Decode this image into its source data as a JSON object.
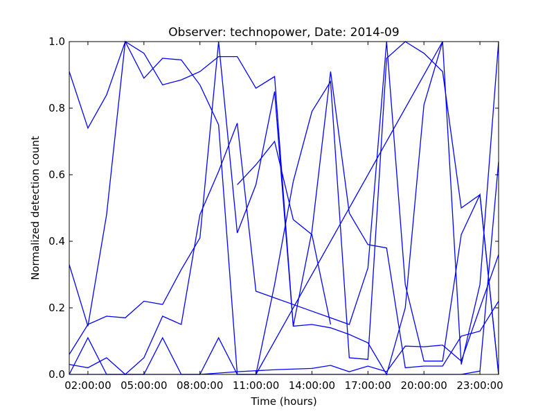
{
  "chart_data": {
    "type": "line",
    "title": "Observer: technopower, Date: 2014-09",
    "xlabel": "Time (hours)",
    "ylabel": "Normalized detection count",
    "xlim": [
      1,
      24
    ],
    "ylim": [
      0,
      1
    ],
    "x_ticks": [
      2,
      5,
      8,
      11,
      14,
      17,
      20,
      23
    ],
    "x_tick_labels": [
      "02:00:00",
      "05:00:00",
      "08:00:00",
      "11:00:00",
      "14:00:00",
      "17:00:00",
      "20:00:00",
      "23:00:00"
    ],
    "y_ticks": [
      0.0,
      0.2,
      0.4,
      0.6,
      0.8,
      1.0
    ],
    "y_tick_labels": [
      "0.0",
      "0.2",
      "0.4",
      "0.6",
      "0.8",
      "1.0"
    ],
    "grid": false,
    "line_color": "#0000ff",
    "series": [
      {
        "x": [
          1,
          2,
          3,
          4,
          5,
          6,
          7,
          8,
          9,
          10,
          11,
          12,
          13,
          14,
          15,
          16,
          17,
          18,
          19,
          20,
          21,
          22,
          23,
          24
        ],
        "y": [
          0.91,
          0.74,
          0.84,
          1.0,
          0.89,
          0.95,
          0.945,
          0.87,
          0.75,
          0.0,
          0.0,
          0.27,
          0.58,
          0.79,
          0.88,
          0.05,
          0.045,
          0.95,
          1.0,
          0.965,
          0.91,
          0.5,
          0.54,
          0.0
        ]
      },
      {
        "x": [
          1,
          2,
          3,
          4,
          5,
          6,
          7,
          8,
          9,
          10,
          11,
          12,
          13,
          14,
          15,
          16,
          17,
          18,
          19,
          20,
          21,
          22,
          23,
          24
        ],
        "y": [
          0.06,
          0.15,
          0.175,
          0.17,
          0.22,
          0.21,
          0.315,
          0.41,
          1.0,
          0.425,
          0.57,
          0.85,
          0.145,
          0.43,
          0.91,
          0.485,
          0.39,
          0.38,
          0.02,
          0.025,
          0.025,
          0.115,
          0.13,
          0.22
        ]
      },
      {
        "x": [
          1,
          2,
          3,
          4,
          5,
          6,
          7,
          8,
          9,
          10,
          11,
          12,
          13,
          14,
          15,
          16,
          17,
          18,
          19,
          20,
          21,
          22,
          23,
          24
        ],
        "y": [
          0.33,
          0.145,
          0.48,
          1.0,
          0.965,
          0.87,
          0.885,
          0.91,
          0.955,
          0.955,
          0.86,
          0.895,
          0.145,
          0.15,
          0.14,
          0.12,
          0.095,
          0.0,
          0.2,
          0.81,
          1.0,
          0.03,
          0.27,
          1.0
        ]
      },
      {
        "x": [
          1,
          2,
          3,
          4,
          5,
          6,
          7,
          8,
          9,
          10,
          11,
          12,
          13,
          14,
          15,
          16,
          17,
          18,
          19,
          20,
          21,
          22,
          23,
          24
        ],
        "y": [
          0.03,
          0.02,
          0.05,
          0.0,
          0.05,
          0.175,
          0.15,
          0.48,
          0.61,
          0.755,
          0.25,
          0.23,
          0.21,
          0.19,
          0.17,
          0.15,
          0.32,
          1.0,
          0.27,
          0.04,
          0.04,
          0.42,
          0.54,
          0.0
        ]
      },
      {
        "x": [
          1,
          2,
          3,
          4,
          5,
          6,
          7,
          8,
          9,
          10,
          11,
          12,
          13,
          14,
          15,
          16,
          17,
          18,
          19,
          20,
          21,
          22,
          23,
          24
        ],
        "y": [
          0.0,
          0.11,
          0.0,
          0.0,
          0.0,
          0.11,
          0.0,
          0.0,
          0.11,
          0.0,
          0.0,
          0.0,
          0.0,
          0.0,
          0.0,
          0.0,
          0.0,
          0.0,
          0.0,
          0.0,
          0.0,
          0.0,
          0.01,
          0.64
        ]
      },
      {
        "x": [
          1,
          5,
          8,
          10,
          12,
          14,
          15,
          16,
          17,
          18,
          19,
          20,
          21,
          22,
          23,
          24
        ],
        "y": [
          0.0,
          0.0,
          0.0,
          0.008,
          0.014,
          0.018,
          0.027,
          0.008,
          0.025,
          0.008,
          0.085,
          0.083,
          0.088,
          0.04,
          0.2,
          0.36
        ]
      },
      {
        "x": [
          10,
          11,
          12,
          13,
          14,
          15
        ],
        "y": [
          0.57,
          0.63,
          0.7,
          0.465,
          0.42,
          0.15
        ]
      },
      {
        "x": [
          11,
          21
        ],
        "y": [
          0.0,
          1.0
        ]
      }
    ]
  }
}
